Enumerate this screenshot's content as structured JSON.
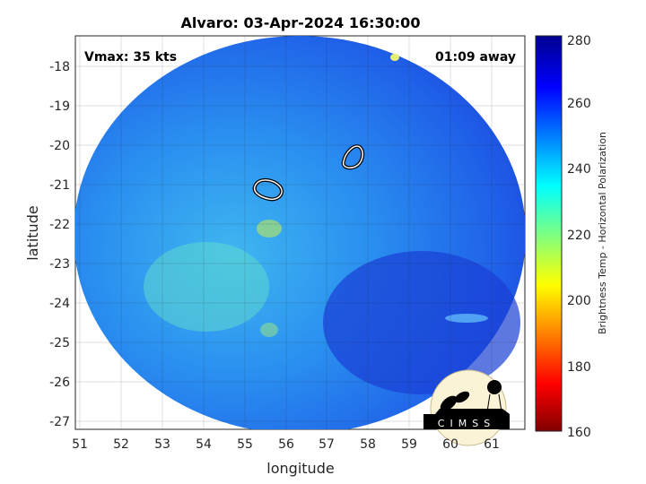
{
  "title": "Alvaro: 03-Apr-2024 16:30:00",
  "vmax_label": "Vmax: 35 kts",
  "time_away_label": "01:09 away",
  "xlabel": "longitude",
  "ylabel": "latitude",
  "xticks": [
    "51",
    "52",
    "53",
    "54",
    "55",
    "56",
    "57",
    "58",
    "59",
    "60",
    "61"
  ],
  "yticks": [
    "-18",
    "-19",
    "-20",
    "-21",
    "-22",
    "-23",
    "-24",
    "-25",
    "-26",
    "-27"
  ],
  "colorbar": {
    "label": "Brightness Temp - Horizontal Polarization",
    "ticks": [
      "280",
      "260",
      "240",
      "220",
      "200",
      "180",
      "160"
    ],
    "range": [
      160,
      280
    ],
    "colormap": "jet"
  },
  "logo_text": "CIMSS",
  "chart_data": {
    "type": "heatmap",
    "title": "Alvaro: 03-Apr-2024 16:30:00",
    "xlabel": "longitude",
    "ylabel": "latitude",
    "xlim": [
      50.9,
      61.8
    ],
    "ylim": [
      -27.2,
      -17.2
    ],
    "grid": true,
    "colorbar_range": [
      160,
      280
    ],
    "dominant_values": "240-270",
    "contours": [
      {
        "center": [
          55.5,
          -21.1
        ]
      },
      {
        "center": [
          57.6,
          -20.3
        ]
      }
    ]
  }
}
